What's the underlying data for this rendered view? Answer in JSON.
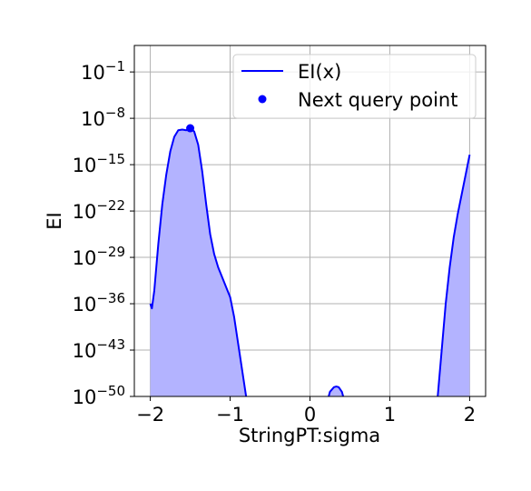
{
  "chart_data": {
    "type": "line",
    "xlabel": "StringPT:sigma",
    "ylabel": "EI",
    "yscale": "log",
    "xlim": [
      -2.2,
      2.2
    ],
    "ylim_log10": [
      -50,
      3
    ],
    "x_ticks": [
      -2,
      -1,
      0,
      1,
      2
    ],
    "x_tick_labels": [
      "−2",
      "−1",
      "0",
      "1",
      "2"
    ],
    "y_ticks_log10": [
      -50,
      -43,
      -36,
      -29,
      -22,
      -15,
      -8,
      -1
    ],
    "y_tick_bases": [
      "10",
      "10",
      "10",
      "10",
      "10",
      "10",
      "10",
      "10"
    ],
    "y_tick_exponents": [
      "−50",
      "−43",
      "−36",
      "−29",
      "−22",
      "−15",
      "−8",
      "−1"
    ],
    "grid": true,
    "legend_position": "top-right",
    "series": [
      {
        "name": "EI(x)",
        "style": "line",
        "fill_under": true,
        "x": [
          -2.0,
          -1.98,
          -1.95,
          -1.9,
          -1.85,
          -1.8,
          -1.75,
          -1.7,
          -1.65,
          -1.6,
          -1.55,
          -1.5,
          -1.45,
          -1.4,
          -1.35,
          -1.3,
          -1.25,
          -1.2,
          -1.15,
          -1.1,
          -1.05,
          -1.0,
          -0.95,
          -0.9,
          -0.85,
          -0.8,
          -0.77
        ],
        "log10_y": [
          -36.0,
          -36.7,
          -34.0,
          -27.0,
          -21.0,
          -16.5,
          -13.0,
          -10.8,
          -9.8,
          -9.7,
          -9.8,
          -9.5,
          -10.0,
          -12.0,
          -16.0,
          -21.0,
          -25.5,
          -28.5,
          -30.5,
          -32.0,
          -33.5,
          -35.0,
          -38.0,
          -42.0,
          -46.0,
          -50.0,
          -53.0
        ]
      },
      {
        "name": "",
        "style": "line",
        "fill_under": true,
        "x": [
          0.2,
          0.25,
          0.3,
          0.33,
          0.36,
          0.4,
          0.45
        ],
        "log10_y": [
          -51.5,
          -49.3,
          -48.6,
          -48.5,
          -48.6,
          -49.3,
          -51.5
        ]
      },
      {
        "name": "",
        "style": "line",
        "fill_under": true,
        "x": [
          1.58,
          1.6,
          1.65,
          1.7,
          1.75,
          1.8,
          1.85,
          1.9,
          1.95,
          2.0
        ],
        "log10_y": [
          -53.0,
          -50.0,
          -43.0,
          -36.0,
          -30.5,
          -26.0,
          -22.5,
          -19.5,
          -16.5,
          -13.5
        ]
      },
      {
        "name": "Next query point",
        "style": "marker",
        "x": [
          -1.5
        ],
        "log10_y": [
          -9.5
        ]
      }
    ]
  },
  "colors": {
    "line": "#0000ff",
    "fill": "#b3b3ff",
    "grid": "#b0b0b0",
    "axis": "#000000"
  }
}
